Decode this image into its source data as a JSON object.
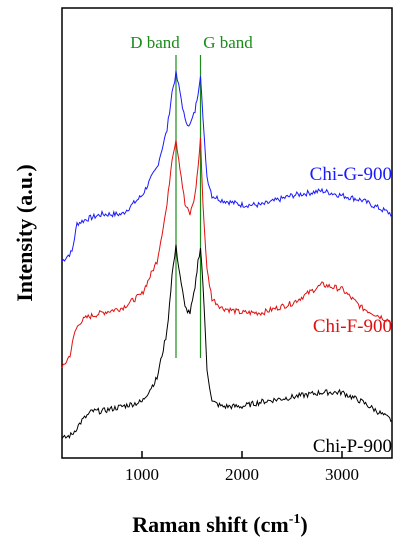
{
  "chart_data": {
    "type": "line",
    "xlabel": "Raman shift (cm",
    "xlabel_sup": "-1",
    "xlabel_end": ")",
    "ylabel": "Intensity (a.u.)",
    "xlim": [
      200,
      3500
    ],
    "xticks": [
      1000,
      2000,
      3000
    ],
    "grid": false,
    "legend": "none",
    "offsets_note": "stacked",
    "band_lines": [
      {
        "label": "D band",
        "x": 1340,
        "color": "#1a8c1a"
      },
      {
        "label": "G band",
        "x": 1585,
        "color": "#1a8c1a"
      }
    ],
    "series": [
      {
        "name": "Chi-G-900",
        "color": "#1a1aff",
        "x": [
          200,
          300,
          350,
          450,
          600,
          800,
          1000,
          1150,
          1250,
          1300,
          1340,
          1380,
          1430,
          1480,
          1530,
          1560,
          1585,
          1610,
          1650,
          1700,
          1800,
          2000,
          2200,
          2500,
          2800,
          3000,
          3200,
          3500
        ],
        "y": [
          0.3,
          0.32,
          0.38,
          0.39,
          0.4,
          0.4,
          0.44,
          0.5,
          0.58,
          0.66,
          0.7,
          0.66,
          0.6,
          0.59,
          0.62,
          0.66,
          0.7,
          0.6,
          0.48,
          0.44,
          0.43,
          0.42,
          0.42,
          0.44,
          0.45,
          0.44,
          0.43,
          0.4
        ]
      },
      {
        "name": "Chi-F-900",
        "color": "#e01010",
        "x": [
          200,
          280,
          330,
          380,
          450,
          600,
          800,
          1000,
          1150,
          1250,
          1300,
          1340,
          1380,
          1430,
          1480,
          1530,
          1560,
          1585,
          1610,
          1650,
          1700,
          1800,
          2000,
          2200,
          2500,
          2800,
          3000,
          3200,
          3500
        ],
        "y": [
          0.07,
          0.1,
          0.15,
          0.17,
          0.18,
          0.19,
          0.2,
          0.23,
          0.3,
          0.42,
          0.52,
          0.56,
          0.5,
          0.42,
          0.4,
          0.44,
          0.5,
          0.56,
          0.42,
          0.28,
          0.22,
          0.2,
          0.19,
          0.19,
          0.21,
          0.25,
          0.24,
          0.2,
          0.17
        ]
      },
      {
        "name": "Chi-P-900",
        "color": "#000000",
        "x": [
          200,
          300,
          400,
          500,
          600,
          800,
          1000,
          1150,
          1250,
          1300,
          1340,
          1380,
          1430,
          1480,
          1530,
          1560,
          1585,
          1610,
          1650,
          1700,
          1800,
          2000,
          2200,
          2500,
          2800,
          3000,
          3200,
          3500
        ],
        "y": [
          -0.08,
          -0.07,
          -0.04,
          -0.02,
          -0.02,
          -0.01,
          0.0,
          0.05,
          0.15,
          0.27,
          0.33,
          0.27,
          0.2,
          0.19,
          0.24,
          0.3,
          0.33,
          0.25,
          0.07,
          0.0,
          -0.01,
          -0.01,
          0.0,
          0.01,
          0.02,
          0.02,
          0.0,
          -0.04
        ]
      }
    ],
    "ylim": [
      -0.12,
      0.84
    ]
  }
}
